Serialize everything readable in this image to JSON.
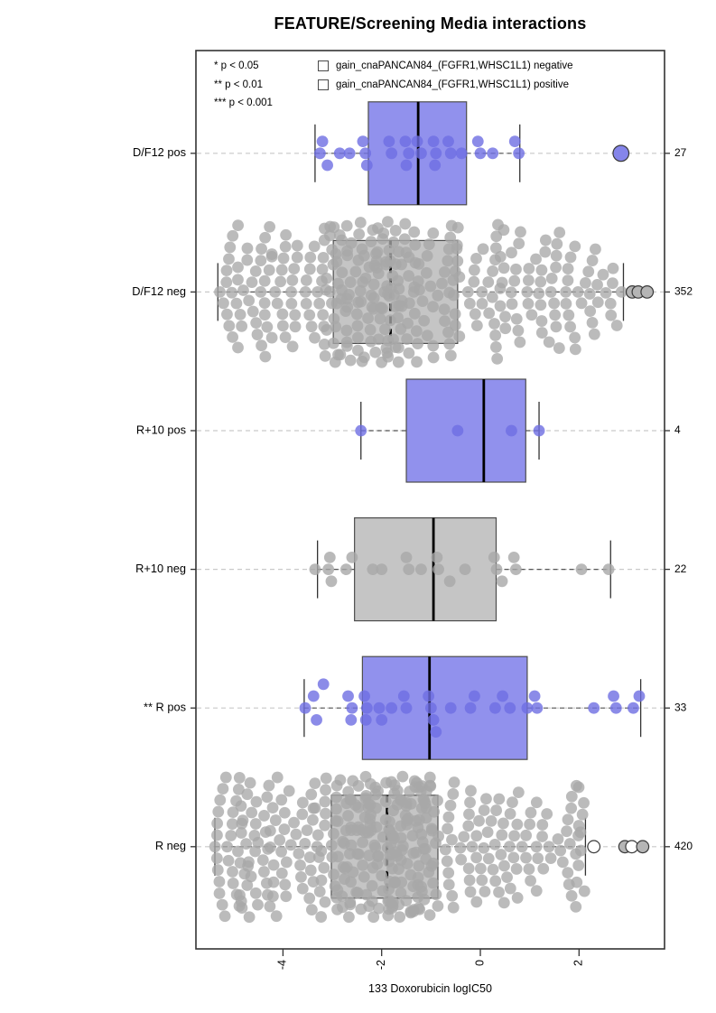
{
  "title": "FEATURE/Screening Media interactions",
  "significance": {
    "lines": [
      "* p < 0.05",
      "** p < 0.01",
      "*** p < 0.001"
    ]
  },
  "legend": {
    "items": [
      {
        "label": "gain_cnaPANCAN84_(FGFR1,WHSC1L1) negative",
        "color": "#c6c6c6"
      },
      {
        "label": "gain_cnaPANCAN84_(FGFR1,WHSC1L1) positive",
        "color": "#9191ed"
      }
    ]
  },
  "chart_data": {
    "type": "boxplot-beeswarm-horizontal",
    "title": "FEATURE/Screening Media interactions",
    "xlabel": "133 Doxorubicin logIC50",
    "x_ticks": [
      -4,
      -2,
      0,
      2
    ],
    "xlim": [
      -5.76,
      3.74
    ],
    "grid": "dashed-row-guides",
    "legend_position": "top-inside",
    "colors": {
      "box_negative": "#c5c5c5",
      "box_positive": "#9191ed",
      "point_negative": "#a8a8a8",
      "point_positive": "#6e6ee2",
      "median": "#000000",
      "whisker": "#555555",
      "frame": "#333333",
      "guide": "#c9c9c9",
      "outlier_stroke": "#3a3a3a",
      "outlier_open_fill": "#ffffff",
      "outlier_gray_fill": "#b5b5b5",
      "outlier_blue_fill": "#8585ea"
    },
    "seed": 20,
    "groups": [
      {
        "label": "D/F12 pos",
        "count": 27,
        "color": "positive",
        "box": {
          "q1": -2.27,
          "median": -1.26,
          "q3": -0.28,
          "whisker_low": -3.35,
          "whisker_high": 0.8
        },
        "points": [
          [
            -3.25,
            0
          ],
          [
            -3.2,
            1
          ],
          [
            -3.1,
            -1
          ],
          [
            -2.85,
            0
          ],
          [
            -2.65,
            0
          ],
          [
            -2.38,
            1
          ],
          [
            -2.33,
            0
          ],
          [
            -2.3,
            -1
          ],
          [
            -1.85,
            1
          ],
          [
            -1.8,
            0
          ],
          [
            -1.52,
            1
          ],
          [
            -1.45,
            0
          ],
          [
            -1.5,
            -1
          ],
          [
            -1.28,
            1
          ],
          [
            -1.2,
            0
          ],
          [
            -0.95,
            1
          ],
          [
            -0.9,
            0
          ],
          [
            -0.92,
            -1
          ],
          [
            -0.65,
            1
          ],
          [
            -0.6,
            0
          ],
          [
            -0.38,
            0
          ],
          [
            -0.05,
            1
          ],
          [
            0.0,
            0
          ],
          [
            0.25,
            0
          ],
          [
            0.7,
            1
          ],
          [
            0.78,
            0
          ]
        ],
        "outliers": [
          {
            "x": 2.85,
            "style": "filled-large"
          }
        ]
      },
      {
        "label": "D/F12 neg",
        "count": 352,
        "color": "negative",
        "swarm": true,
        "box": {
          "q1": -2.98,
          "median": -1.82,
          "q3": -0.46,
          "whisker_low": -5.32,
          "whisker_high": 2.9
        },
        "points": [],
        "outliers": [
          {
            "x": 3.08,
            "style": "filled"
          },
          {
            "x": 3.2,
            "style": "filled"
          },
          {
            "x": 3.38,
            "style": "filled"
          }
        ]
      },
      {
        "label": "R+10 pos",
        "count": 4,
        "color": "positive",
        "box": {
          "q1": -1.5,
          "median": 0.07,
          "q3": 0.92,
          "whisker_low": -2.42,
          "whisker_high": 1.19
        },
        "points": [
          [
            -2.42,
            0
          ],
          [
            -0.46,
            0
          ],
          [
            0.63,
            0
          ],
          [
            1.19,
            0
          ]
        ],
        "outliers": []
      },
      {
        "label": "R+10 neg",
        "count": 22,
        "color": "negative",
        "box": {
          "q1": -2.55,
          "median": -0.95,
          "q3": 0.32,
          "whisker_low": -3.3,
          "whisker_high": 2.64
        },
        "points": [
          [
            -3.35,
            0
          ],
          [
            -3.05,
            1
          ],
          [
            -3.08,
            0
          ],
          [
            -3.02,
            -1
          ],
          [
            -2.72,
            0
          ],
          [
            -2.6,
            1
          ],
          [
            -2.18,
            0
          ],
          [
            -2.0,
            0
          ],
          [
            -1.5,
            1
          ],
          [
            -1.45,
            0
          ],
          [
            -1.2,
            0
          ],
          [
            -0.88,
            1
          ],
          [
            -0.85,
            0
          ],
          [
            -0.62,
            -1
          ],
          [
            -0.31,
            0
          ],
          [
            0.28,
            1
          ],
          [
            0.33,
            0
          ],
          [
            0.44,
            -1
          ],
          [
            0.68,
            1
          ],
          [
            0.72,
            0
          ],
          [
            2.05,
            0
          ],
          [
            2.6,
            0
          ]
        ],
        "outliers": []
      },
      {
        "label": "** R pos",
        "count": 33,
        "color": "positive",
        "box": {
          "q1": -2.39,
          "median": -1.03,
          "q3": 0.95,
          "whisker_low": -3.57,
          "whisker_high": 3.25
        },
        "points": [
          [
            -3.55,
            0
          ],
          [
            -3.38,
            1
          ],
          [
            -3.32,
            -1
          ],
          [
            -3.18,
            2
          ],
          [
            -2.68,
            1
          ],
          [
            -2.6,
            0
          ],
          [
            -2.62,
            -1
          ],
          [
            -2.35,
            1
          ],
          [
            -2.3,
            0
          ],
          [
            -2.32,
            -1
          ],
          [
            -2.05,
            0
          ],
          [
            -2.0,
            -1
          ],
          [
            -1.8,
            0
          ],
          [
            -1.55,
            1
          ],
          [
            -1.5,
            0
          ],
          [
            -1.05,
            1
          ],
          [
            -1.0,
            0
          ],
          [
            -0.95,
            -1
          ],
          [
            -0.9,
            -2
          ],
          [
            -0.6,
            0
          ],
          [
            -0.2,
            0
          ],
          [
            -0.12,
            1
          ],
          [
            0.3,
            0
          ],
          [
            0.45,
            1
          ],
          [
            0.6,
            0
          ],
          [
            0.95,
            0
          ],
          [
            1.1,
            1
          ],
          [
            1.15,
            0
          ],
          [
            2.3,
            0
          ],
          [
            2.7,
            1
          ],
          [
            2.75,
            0
          ],
          [
            3.1,
            0
          ],
          [
            3.22,
            1
          ]
        ],
        "outliers": []
      },
      {
        "label": "R neg",
        "count": 420,
        "color": "negative",
        "swarm": true,
        "box": {
          "q1": -3.02,
          "median": -1.89,
          "q3": -0.86,
          "whisker_low": -5.38,
          "whisker_high": 2.13
        },
        "points": [],
        "outliers": [
          {
            "x": 2.3,
            "style": "open"
          },
          {
            "x": 2.93,
            "style": "filled"
          },
          {
            "x": 3.07,
            "style": "open"
          },
          {
            "x": 3.29,
            "style": "filled"
          }
        ]
      }
    ],
    "right_counts": [
      27,
      352,
      4,
      22,
      33,
      420
    ]
  }
}
